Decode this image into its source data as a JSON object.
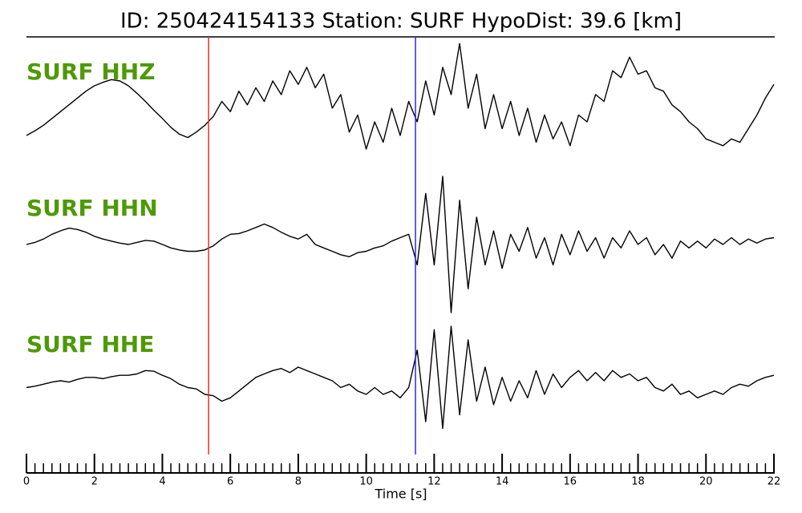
{
  "chart_data": {
    "type": "line",
    "title": "ID: 250424154133   Station: SURF   HypoDist:    39.6 [km]",
    "xlabel": "Time [s]",
    "xlim": [
      0,
      22
    ],
    "xticks": [
      0,
      2,
      4,
      6,
      8,
      10,
      12,
      14,
      16,
      18,
      20,
      22
    ],
    "xminorticks": [
      0,
      0.25,
      0.5,
      0.75,
      1,
      1.25,
      1.5,
      1.75,
      2,
      2.25,
      2.5,
      2.75,
      3,
      3.25,
      3.5,
      3.75,
      4,
      4.25,
      4.5,
      4.75,
      5,
      5.25,
      5.5,
      5.75,
      6,
      6.25,
      6.5,
      6.75,
      7,
      7.25,
      7.5,
      7.75,
      8,
      8.25,
      8.5,
      8.75,
      9,
      9.25,
      9.5,
      9.75,
      10,
      10.25,
      10.5,
      10.75,
      11,
      11.25,
      11.5,
      11.75,
      12,
      12.25,
      12.5,
      12.75,
      13,
      13.25,
      13.5,
      13.75,
      14,
      14.25,
      14.5,
      14.75,
      15,
      15.25,
      15.5,
      15.75,
      16,
      16.25,
      16.5,
      16.75,
      17,
      17.25,
      17.5,
      17.75,
      18,
      18.25,
      18.5,
      18.75,
      19,
      19.25,
      19.5,
      19.75,
      20,
      20.25,
      20.5,
      20.75,
      21,
      21.25,
      21.5,
      21.75,
      22
    ],
    "ylim": [
      -1,
      1
    ],
    "label_color": "#4d9a06",
    "x": [
      0,
      0.25,
      0.5,
      0.75,
      1,
      1.25,
      1.5,
      1.75,
      2,
      2.25,
      2.5,
      2.75,
      3,
      3.25,
      3.5,
      3.75,
      4,
      4.25,
      4.5,
      4.75,
      5,
      5.25,
      5.5,
      5.75,
      6,
      6.25,
      6.5,
      6.75,
      7,
      7.25,
      7.5,
      7.75,
      8,
      8.25,
      8.5,
      8.75,
      9,
      9.25,
      9.5,
      9.75,
      10,
      10.25,
      10.5,
      10.75,
      11,
      11.25,
      11.5,
      11.75,
      12,
      12.25,
      12.5,
      12.75,
      13,
      13.25,
      13.5,
      13.75,
      14,
      14.25,
      14.5,
      14.75,
      15,
      15.25,
      15.5,
      15.75,
      16,
      16.25,
      16.5,
      16.75,
      17,
      17.25,
      17.5,
      17.75,
      18,
      18.25,
      18.5,
      18.75,
      19,
      19.25,
      19.5,
      19.75,
      20,
      20.25,
      20.5,
      20.75,
      21,
      21.25,
      21.5,
      21.75,
      22
    ],
    "series": [
      {
        "name": "SURF HHZ",
        "color": "#000000",
        "values": [
          -0.4,
          -0.33,
          -0.25,
          -0.15,
          -0.05,
          0.05,
          0.15,
          0.25,
          0.33,
          0.38,
          0.42,
          0.4,
          0.33,
          0.22,
          0.1,
          -0.03,
          -0.15,
          -0.28,
          -0.38,
          -0.43,
          -0.35,
          -0.25,
          -0.12,
          0.1,
          -0.05,
          0.25,
          0.05,
          0.3,
          0.1,
          0.4,
          0.2,
          0.55,
          0.35,
          0.6,
          0.3,
          0.5,
          0.0,
          0.2,
          -0.35,
          -0.1,
          -0.6,
          -0.2,
          -0.5,
          0.0,
          -0.4,
          0.1,
          -0.2,
          0.4,
          -0.1,
          0.6,
          0.2,
          0.95,
          0.0,
          0.5,
          -0.3,
          0.2,
          -0.3,
          0.1,
          -0.4,
          0.0,
          -0.5,
          -0.1,
          -0.45,
          -0.2,
          -0.55,
          -0.1,
          -0.2,
          0.2,
          0.1,
          0.55,
          0.45,
          0.75,
          0.5,
          0.55,
          0.3,
          0.25,
          0.05,
          -0.05,
          -0.2,
          -0.3,
          -0.45,
          -0.5,
          -0.55,
          -0.45,
          -0.5,
          -0.3,
          -0.1,
          0.15,
          0.35
        ]
      },
      {
        "name": "SURF HHN",
        "color": "#000000",
        "values": [
          0.0,
          0.03,
          0.08,
          0.15,
          0.2,
          0.24,
          0.22,
          0.18,
          0.12,
          0.08,
          0.05,
          0.02,
          0.0,
          0.03,
          0.06,
          0.05,
          0.0,
          -0.05,
          -0.08,
          -0.1,
          -0.1,
          -0.08,
          -0.02,
          0.08,
          0.15,
          0.16,
          0.2,
          0.25,
          0.3,
          0.25,
          0.18,
          0.12,
          0.08,
          0.15,
          0.0,
          -0.05,
          -0.1,
          -0.15,
          -0.18,
          -0.12,
          -0.1,
          -0.05,
          -0.02,
          0.05,
          0.1,
          0.15,
          -0.3,
          0.75,
          -0.3,
          1.0,
          -1.0,
          0.65,
          -0.65,
          0.4,
          -0.3,
          0.2,
          -0.35,
          0.15,
          -0.1,
          0.25,
          -0.2,
          0.1,
          -0.3,
          0.15,
          -0.15,
          0.2,
          -0.1,
          0.1,
          -0.2,
          0.1,
          -0.05,
          0.2,
          0.0,
          0.1,
          -0.15,
          0.0,
          -0.2,
          0.05,
          -0.05,
          0.05,
          -0.05,
          0.08,
          0.0,
          0.1,
          0.0,
          0.08,
          0.02,
          0.08,
          0.1
        ]
      },
      {
        "name": "SURF HHE",
        "color": "#000000",
        "values": [
          -0.1,
          -0.08,
          -0.05,
          -0.02,
          0.0,
          -0.02,
          0.02,
          0.05,
          0.05,
          0.03,
          0.06,
          0.08,
          0.08,
          0.1,
          0.15,
          0.14,
          0.08,
          0.03,
          -0.05,
          -0.1,
          -0.12,
          -0.2,
          -0.22,
          -0.3,
          -0.25,
          -0.15,
          -0.05,
          0.05,
          0.1,
          0.15,
          0.18,
          0.12,
          0.2,
          0.15,
          0.1,
          0.05,
          0.0,
          -0.1,
          -0.05,
          -0.15,
          -0.2,
          -0.1,
          -0.2,
          -0.15,
          -0.25,
          -0.1,
          0.45,
          -0.6,
          0.75,
          -0.7,
          0.8,
          -0.5,
          0.6,
          -0.3,
          0.2,
          -0.35,
          0.05,
          -0.3,
          0.0,
          -0.25,
          0.15,
          -0.2,
          0.1,
          -0.1,
          0.05,
          0.15,
          0.0,
          0.12,
          0.0,
          0.15,
          0.05,
          0.1,
          0.0,
          0.05,
          -0.1,
          -0.15,
          -0.05,
          -0.2,
          -0.15,
          -0.25,
          -0.2,
          -0.15,
          -0.2,
          -0.1,
          -0.05,
          -0.08,
          0.0,
          0.05,
          0.08
        ]
      }
    ],
    "picks": [
      {
        "x": 5.36,
        "color": "#e8302a"
      },
      {
        "x": 11.45,
        "color": "#2a2ae8"
      }
    ]
  }
}
